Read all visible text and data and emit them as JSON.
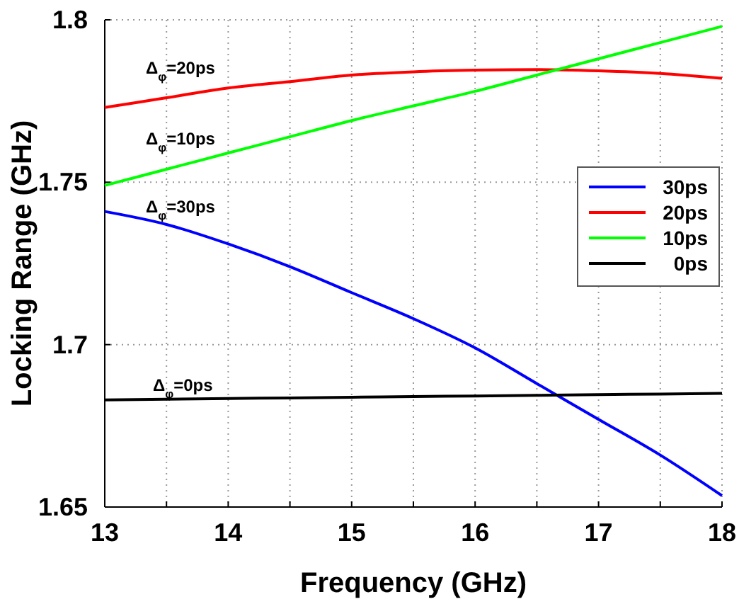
{
  "chart_data": {
    "type": "line",
    "xlabel": "Frequency (GHz)",
    "ylabel": "Locking Range (GHz)",
    "x": [
      13,
      13.5,
      14,
      14.5,
      15,
      15.5,
      16,
      16.5,
      17,
      17.5,
      18
    ],
    "series": [
      {
        "name": "30ps",
        "color": "#0000ff",
        "values": [
          1.741,
          1.737,
          1.731,
          1.724,
          1.716,
          1.708,
          1.699,
          1.688,
          1.677,
          1.666,
          1.6535
        ]
      },
      {
        "name": "20ps",
        "color": "#ff0000",
        "values": [
          1.773,
          1.776,
          1.779,
          1.781,
          1.783,
          1.784,
          1.7845,
          1.7847,
          1.7843,
          1.7835,
          1.782
        ]
      },
      {
        "name": "10ps",
        "color": "#00ff00",
        "values": [
          1.749,
          1.754,
          1.759,
          1.764,
          1.769,
          1.7735,
          1.778,
          1.783,
          1.788,
          1.793,
          1.798
        ]
      },
      {
        "name": "0ps",
        "color": "#000000",
        "values": [
          1.683,
          1.6832,
          1.6834,
          1.6836,
          1.6838,
          1.684,
          1.6842,
          1.6844,
          1.6846,
          1.6848,
          1.685
        ]
      }
    ],
    "xlim": [
      13,
      18
    ],
    "xticks": [
      13,
      {
        "value": 13.5,
        "label": null
      },
      14,
      {
        "value": 14.5,
        "label": null
      },
      15,
      {
        "value": 15.5,
        "label": null
      },
      16,
      {
        "value": 16.5,
        "label": null
      },
      17,
      {
        "value": 17.5,
        "label": null
      },
      18
    ],
    "ylim": [
      1.65,
      1.8
    ],
    "yticks": [
      1.65,
      1.7,
      1.75,
      1.8
    ],
    "grid": true,
    "legend": "right",
    "line_style": "solid",
    "marker": "none",
    "annotations": [
      "Δ$_{φ}$=20ps",
      "Δ$_{φ}$=10ps",
      "Δ$_{φ}$=30ps",
      "Δ$_{φ}$=0ps"
    ]
  }
}
